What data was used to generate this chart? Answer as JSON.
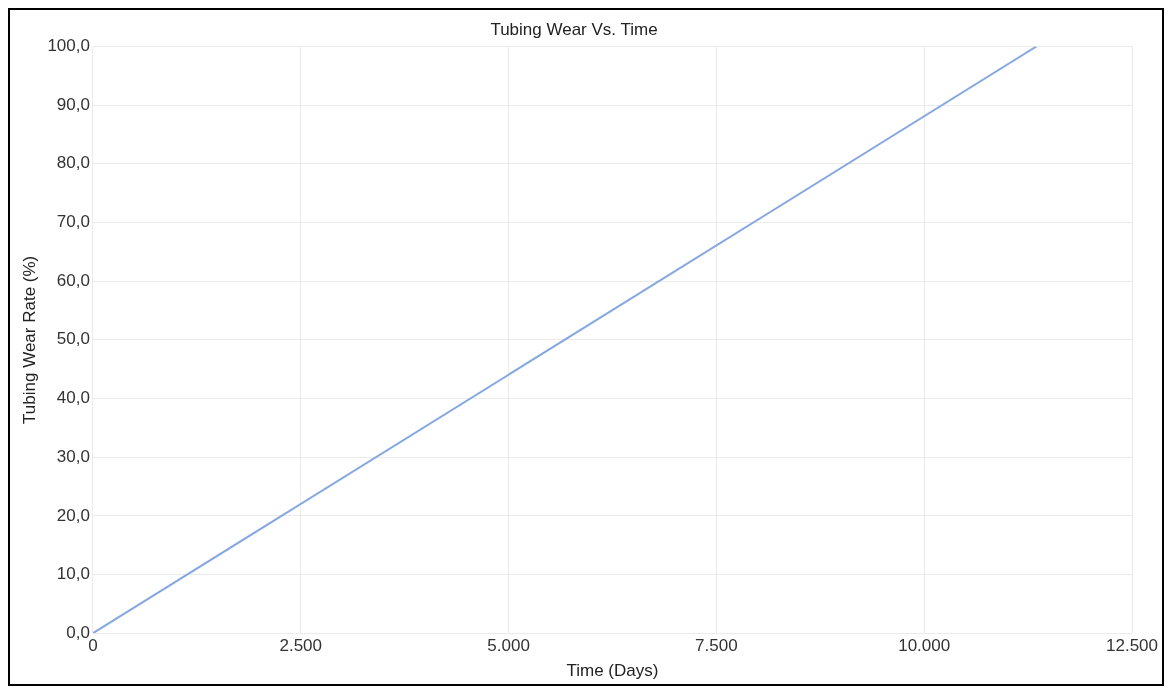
{
  "chart_data": {
    "type": "line",
    "title": "Tubing Wear Vs. Time",
    "xlabel": "Time (Days)",
    "ylabel": "Tubing Wear Rate (%)",
    "x": [
      0,
      11350
    ],
    "series": [
      {
        "color": "#86a8e0",
        "values": [
          0,
          100
        ]
      }
    ],
    "xlim": [
      0,
      12500
    ],
    "xticks": [
      {
        "value": 0,
        "label": "0"
      },
      {
        "value": 2500,
        "label": "2.500"
      },
      {
        "value": 5000,
        "label": "5.000"
      },
      {
        "value": 7500,
        "label": "7.500"
      },
      {
        "value": 10000,
        "label": "10.000"
      },
      {
        "value": 12500,
        "label": "12.500"
      }
    ],
    "ylim": [
      0,
      100
    ],
    "yticks": [
      {
        "value": 0,
        "label": "0,0"
      },
      {
        "value": 10,
        "label": "10,0"
      },
      {
        "value": 20,
        "label": "20,0"
      },
      {
        "value": 30,
        "label": "30,0"
      },
      {
        "value": 40,
        "label": "40,0"
      },
      {
        "value": 50,
        "label": "50,0"
      },
      {
        "value": 60,
        "label": "60,0"
      },
      {
        "value": 70,
        "label": "70,0"
      },
      {
        "value": 80,
        "label": "80,0"
      },
      {
        "value": 90,
        "label": "90,0"
      },
      {
        "value": 100,
        "label": "100,0"
      }
    ],
    "grid": true,
    "legend": false,
    "marker": "none",
    "line_style": "solid"
  }
}
